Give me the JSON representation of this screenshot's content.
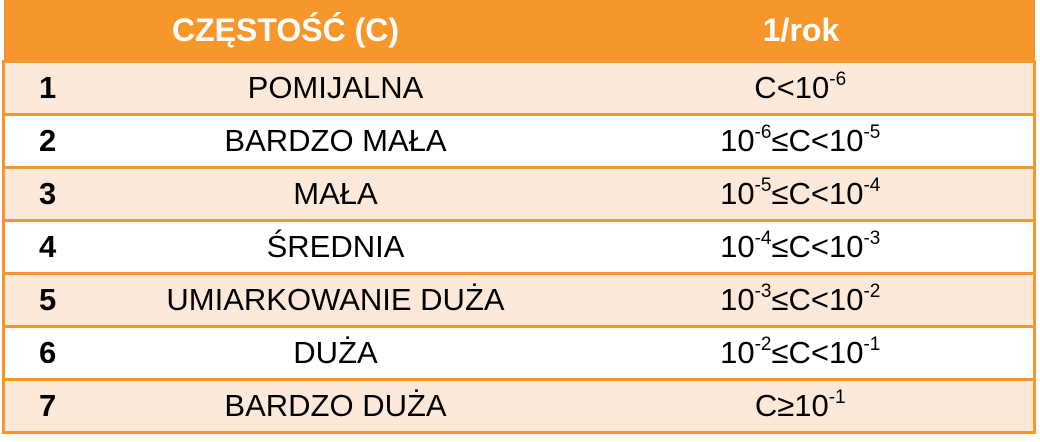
{
  "table": {
    "header": [
      "CZĘSTOŚĆ (C)",
      "1/rok"
    ],
    "rows": [
      {
        "no": "1",
        "name": "POMIJALNA",
        "range": [
          {
            "text": "C<10"
          },
          {
            "sup": "-6"
          }
        ]
      },
      {
        "no": "2",
        "name": "BARDZO MAŁA",
        "range": [
          {
            "text": "10"
          },
          {
            "sup": "-6"
          },
          {
            "text": "≤C<10"
          },
          {
            "sup": "-5"
          }
        ]
      },
      {
        "no": "3",
        "name": "MAŁA",
        "range": [
          {
            "text": "10"
          },
          {
            "sup": "-5"
          },
          {
            "text": "≤C<10"
          },
          {
            "sup": "-4"
          }
        ]
      },
      {
        "no": "4",
        "name": "ŚREDNIA",
        "range": [
          {
            "text": "10"
          },
          {
            "sup": "-4"
          },
          {
            "text": "≤C<10"
          },
          {
            "sup": "-3"
          }
        ]
      },
      {
        "no": "5",
        "name": "UMIARKOWANIE DUŻA",
        "range": [
          {
            "text": "10"
          },
          {
            "sup": "-3"
          },
          {
            "text": "≤C<10"
          },
          {
            "sup": "-2"
          }
        ]
      },
      {
        "no": "6",
        "name": "DUŻA",
        "range": [
          {
            "text": "10"
          },
          {
            "sup": "-2"
          },
          {
            "text": "≤C<10"
          },
          {
            "sup": "-1"
          }
        ]
      },
      {
        "no": "7",
        "name": "BARDZO DUŻA",
        "range": [
          {
            "text": "C≥10"
          },
          {
            "sup": "-1"
          }
        ]
      }
    ]
  }
}
